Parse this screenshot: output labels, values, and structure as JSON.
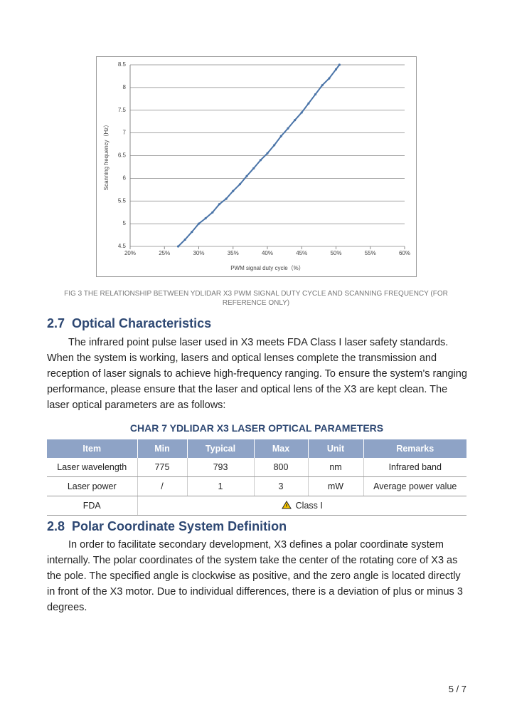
{
  "chart_data": {
    "type": "line",
    "ylabel": "Scanning frequency（Hz）",
    "xlabel": "PWM signal duty cycle（%）",
    "x": [
      27,
      28,
      29,
      30,
      31,
      32,
      33,
      34,
      35,
      36,
      37,
      38,
      39,
      40,
      41,
      42,
      43,
      44,
      45,
      46,
      47,
      48,
      49,
      50,
      50.5
    ],
    "series": [
      {
        "color": "#4a74a8",
        "values": [
          4.5,
          4.65,
          4.82,
          5.0,
          5.12,
          5.25,
          5.43,
          5.55,
          5.72,
          5.87,
          6.05,
          6.22,
          6.4,
          6.55,
          6.73,
          6.93,
          7.1,
          7.28,
          7.45,
          7.65,
          7.85,
          8.05,
          8.2,
          8.4,
          8.5
        ]
      }
    ],
    "xlim": [
      20,
      60
    ],
    "xticks": [
      {
        "value": 20,
        "label": "20%"
      },
      {
        "value": 25,
        "label": "25%"
      },
      {
        "value": 30,
        "label": "30%"
      },
      {
        "value": 35,
        "label": "35%"
      },
      {
        "value": 40,
        "label": "40%"
      },
      {
        "value": 45,
        "label": "45%"
      },
      {
        "value": 50,
        "label": "50%"
      },
      {
        "value": 55,
        "label": "55%"
      },
      {
        "value": 60,
        "label": "60%"
      }
    ],
    "ylim": [
      4.5,
      8.5
    ],
    "yticks": [
      4.5,
      5,
      5.5,
      6,
      6.5,
      7,
      7.5,
      8,
      8.5
    ],
    "grid": true
  },
  "caption": "FIG 3 THE RELATIONSHIP BETWEEN YDLIDAR X3 PWM SIGNAL DUTY CYCLE AND SCANNING FREQUENCY (FOR REFERENCE ONLY)",
  "sections": [
    {
      "number": "2.7",
      "title": "Optical Characteristics",
      "text": "The infrared point pulse laser used in X3 meets FDA Class I laser safety standards. When the system is working, lasers and optical lenses complete the transmission and reception of laser signals to achieve high-frequency ranging. To ensure the system's ranging performance, please ensure that the laser and optical lens of the X3 are kept clean. The laser optical parameters are as follows:"
    },
    {
      "number": "2.8",
      "title": "Polar Coordinate System Definition",
      "text": "In order to facilitate secondary development, X3 defines a polar coordinate system internally. The polar coordinates of the system take the center of the rotating core of X3 as the pole. The specified angle is clockwise as positive, and the zero angle is located directly in front of the X3 motor. Due to individual differences, there is a deviation of plus or minus 3 degrees."
    }
  ],
  "table": {
    "title": "CHAR 7 YDLIDAR X3 LASER OPTICAL PARAMETERS",
    "header": [
      "Item",
      "Min",
      "Typical",
      "Max",
      "Unit",
      "Remarks"
    ],
    "rows": [
      [
        "Laser wavelength",
        "775",
        "793",
        "800",
        "nm",
        "Infrared band"
      ],
      [
        "Laser power",
        "/",
        "1",
        "3",
        "mW",
        "Average power value"
      ],
      [
        "FDA",
        "Class I"
      ]
    ]
  },
  "page_number": "5 / 7"
}
